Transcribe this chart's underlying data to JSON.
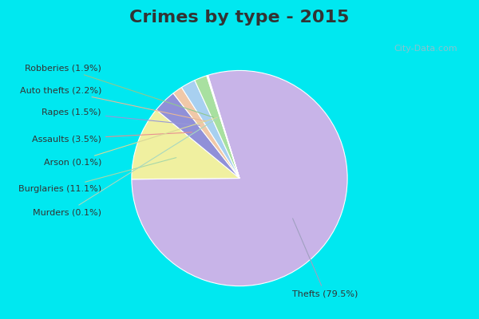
{
  "title": "Crimes by type - 2015",
  "labels": [
    "Thefts",
    "Burglaries",
    "Assaults",
    "Rapes",
    "Auto thefts",
    "Robberies",
    "Arson",
    "Murders"
  ],
  "values": [
    79.5,
    11.1,
    3.5,
    1.5,
    2.2,
    1.9,
    0.1,
    0.1
  ],
  "colors": [
    "#c8b4e8",
    "#f0f0a0",
    "#9090d8",
    "#f0c8a8",
    "#a8d0f0",
    "#a8e0a0",
    "#e8e8b8",
    "#c8e8d0"
  ],
  "label_texts": [
    "Thefts (79.5%)",
    "Burglaries (11.1%)",
    "Assaults (3.5%)",
    "Rapes (1.5%)",
    "Auto thefts (2.2%)",
    "Robberies (1.9%)",
    "Arson (0.1%)",
    "Murders (0.1%)"
  ],
  "bg_cyan": "#00e8f0",
  "bg_inner": "#d8ece0",
  "title_fontsize": 16,
  "title_color": "#333333",
  "watermark": "City-Data.com",
  "startangle": 107,
  "label_fontsize": 8
}
